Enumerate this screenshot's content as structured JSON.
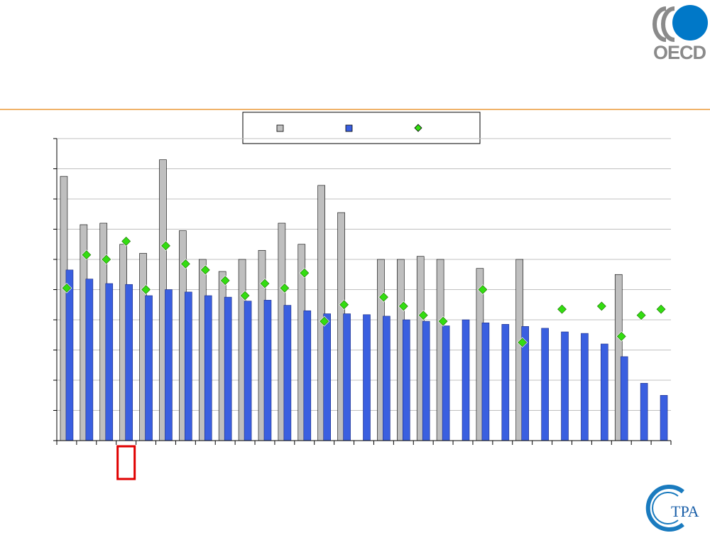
{
  "logos": {
    "oecd_text": "OECD",
    "tpa_text": "TPA",
    "oecd_blue": "#0078c8",
    "oecd_gray": "#8a8a8a",
    "tpa_blue": "#1a7bbf"
  },
  "colors": {
    "header_rule": "#f0b36a",
    "bar_gray": "#bfbfbf",
    "bar_blue": "#3a5fe0",
    "marker_green": "#33dd11",
    "highlight_box": "#e00000",
    "grid": "#c0c0c0",
    "axis": "#000000"
  },
  "legend": {
    "position": "top-center"
  },
  "chart_data": {
    "type": "bar",
    "ylim": [
      0,
      10
    ],
    "grid": true,
    "category_count": 31,
    "highlighted_category_index": 3,
    "series": [
      {
        "kind": "bar",
        "color": "#bfbfbf",
        "values": [
          8.75,
          7.15,
          7.2,
          6.5,
          6.2,
          9.3,
          6.95,
          6.0,
          5.6,
          6.0,
          6.3,
          7.2,
          6.5,
          8.45,
          7.55,
          null,
          6.0,
          6.0,
          6.1,
          6.0,
          null,
          5.7,
          null,
          6.0,
          null,
          null,
          null,
          null,
          5.5,
          null,
          null
        ]
      },
      {
        "kind": "bar",
        "color": "#3a5fe0",
        "values": [
          5.65,
          5.35,
          5.2,
          5.17,
          4.8,
          5.0,
          4.92,
          4.8,
          4.75,
          4.62,
          4.65,
          4.48,
          4.3,
          4.2,
          4.2,
          4.17,
          4.12,
          4.0,
          3.95,
          3.8,
          4.0,
          3.9,
          3.85,
          3.78,
          3.72,
          3.6,
          3.55,
          3.2,
          2.78,
          1.9,
          1.5
        ]
      },
      {
        "kind": "marker",
        "color": "#33dd11",
        "values": [
          5.05,
          6.15,
          6.0,
          6.6,
          5.0,
          6.45,
          5.85,
          5.65,
          5.3,
          4.8,
          5.2,
          5.05,
          5.55,
          3.95,
          4.5,
          null,
          4.75,
          4.45,
          4.15,
          3.95,
          null,
          5.0,
          null,
          3.25,
          null,
          4.35,
          null,
          4.45,
          3.45,
          4.15,
          4.35
        ]
      }
    ]
  }
}
